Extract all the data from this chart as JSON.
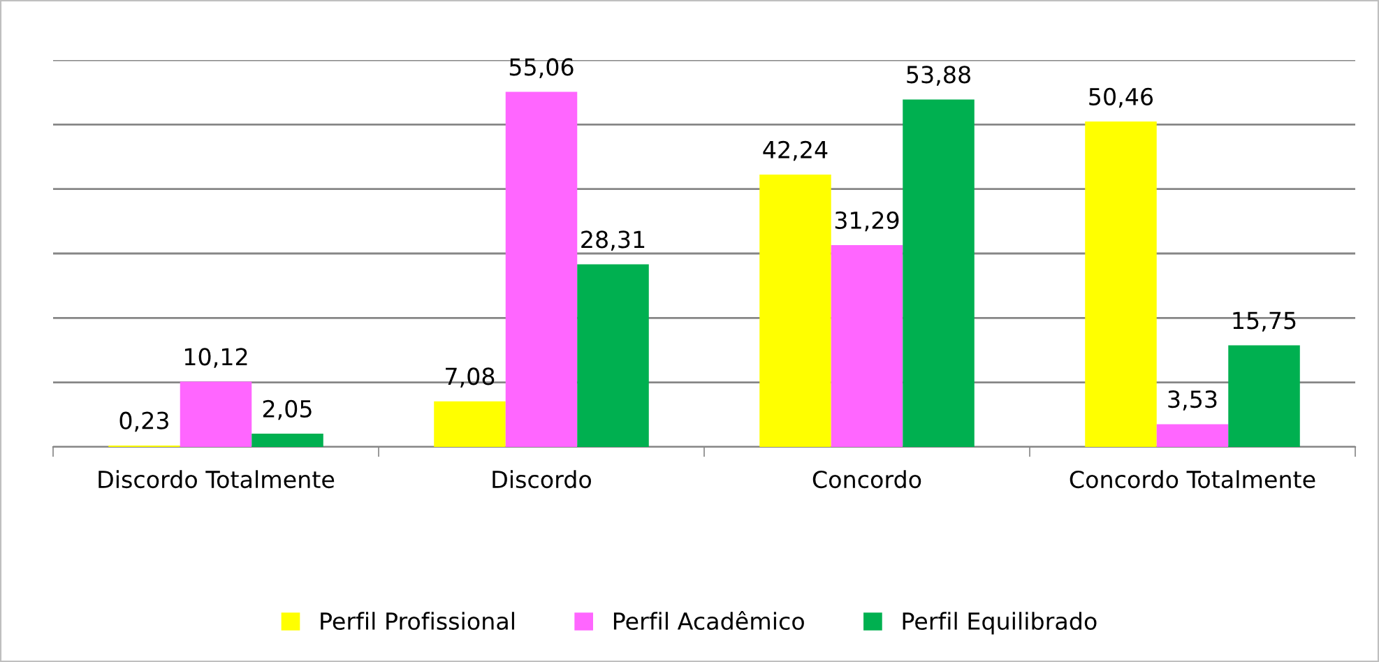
{
  "chart_data": {
    "type": "bar",
    "categories": [
      "Discordo Totalmente",
      "Discordo",
      "Concordo",
      "Concordo Totalmente"
    ],
    "series": [
      {
        "name": "Perfil Profissional",
        "color": "#ffff00",
        "values": [
          0.23,
          7.08,
          42.24,
          50.46
        ],
        "value_labels": [
          "0,23",
          "7,08",
          "42,24",
          "50,46"
        ]
      },
      {
        "name": "Perfil Acadêmico",
        "color": "#ff66ff",
        "values": [
          10.12,
          55.06,
          31.29,
          3.53
        ],
        "value_labels": [
          "10,12",
          "55,06",
          "31,29",
          "3,53"
        ]
      },
      {
        "name": "Perfil Equilibrado",
        "color": "#00b050",
        "values": [
          2.05,
          28.31,
          53.88,
          15.75
        ],
        "value_labels": [
          "2,05",
          "28,31",
          "53,88",
          "15,75"
        ]
      }
    ],
    "ylim": [
      0,
      60
    ],
    "yticks": [
      {
        "value": 0,
        "label": null
      },
      {
        "value": 10,
        "label": null
      },
      {
        "value": 20,
        "label": null
      },
      {
        "value": 30,
        "label": null
      },
      {
        "value": 40,
        "label": null
      },
      {
        "value": 50,
        "label": null
      },
      {
        "value": 60,
        "label": null
      }
    ],
    "grid": "y",
    "legend": "bottom",
    "tick_labels": "x"
  }
}
